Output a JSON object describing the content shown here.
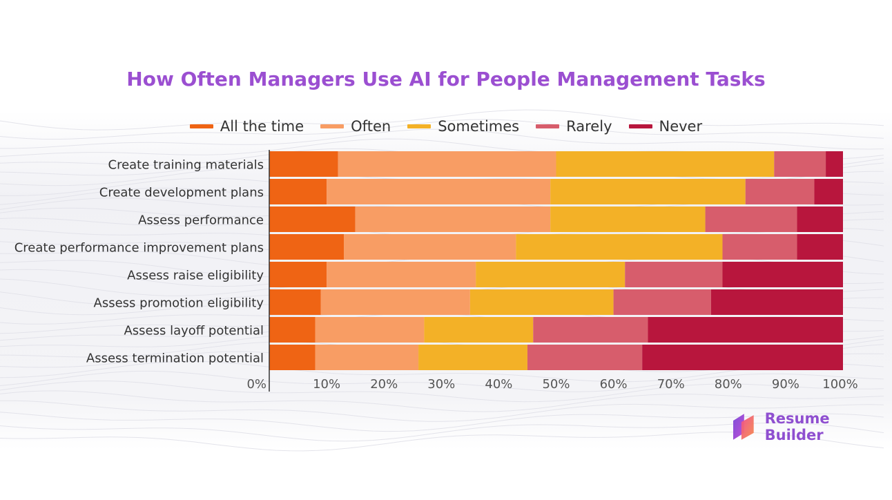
{
  "colors": {
    "title": "#9b4fd1",
    "brand": "#8f4fd0",
    "all_the_time": "#ef6414",
    "often": "#f89d64",
    "sometimes": "#f3b127",
    "rarely": "#d75d6c",
    "never": "#b8163d",
    "axis": "#333333",
    "label": "#333333",
    "tick": "#555555"
  },
  "brand": {
    "name": "Resume Builder",
    "icon": "resume-builder-logo-icon"
  },
  "chart_data": {
    "type": "bar",
    "orientation": "horizontal",
    "stacked": true,
    "title": "How Often Managers Use AI for People Management Tasks",
    "legend_position": "top",
    "xlabel": "",
    "ylabel": "",
    "xlim": [
      0,
      100
    ],
    "grid": false,
    "xticks": [
      "0%",
      "10%",
      "20%",
      "30%",
      "40%",
      "50%",
      "60%",
      "70%",
      "80%",
      "90%",
      "100%"
    ],
    "categories": [
      "Create training materials",
      "Create development plans",
      "Assess performance",
      "Create performance improvement plans",
      "Assess raise eligibility",
      "Assess promotion eligibility",
      "Assess layoff potential",
      "Assess termination potential"
    ],
    "series": [
      {
        "name": "All the time",
        "key": "all_the_time",
        "values": [
          12,
          10,
          15,
          13,
          10,
          9,
          8,
          8
        ]
      },
      {
        "name": "Often",
        "key": "often",
        "values": [
          38,
          39,
          34,
          30,
          26,
          26,
          19,
          18
        ]
      },
      {
        "name": "Sometimes",
        "key": "sometimes",
        "values": [
          38,
          34,
          27,
          36,
          26,
          25,
          19,
          19
        ]
      },
      {
        "name": "Rarely",
        "key": "rarely",
        "values": [
          9,
          12,
          16,
          13,
          17,
          17,
          20,
          20
        ]
      },
      {
        "name": "Never",
        "key": "never",
        "values": [
          3,
          5,
          8,
          8,
          21,
          23,
          34,
          35
        ]
      }
    ]
  }
}
